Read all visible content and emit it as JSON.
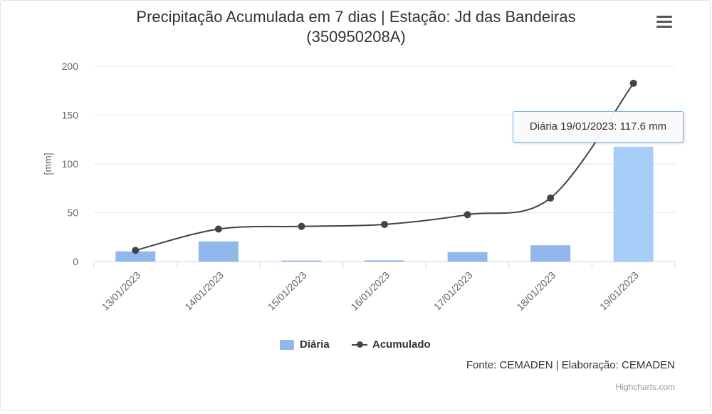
{
  "chart_data": {
    "type": "bar",
    "title": "Precipitação Acumulada em 7 dias | Estação: Jd das Bandeiras (350950208A)",
    "ylabel": "[mm]",
    "ylim": [
      0,
      200
    ],
    "yticks": [
      0,
      50,
      100,
      150,
      200
    ],
    "categories": [
      "13/01/2023",
      "14/01/2023",
      "15/01/2023",
      "16/01/2023",
      "17/01/2023",
      "18/01/2023",
      "19/01/2023"
    ],
    "series": [
      {
        "name": "Diária",
        "type": "bar",
        "color": "#90b8ea",
        "highlight_color": "#a6cdf7",
        "values": [
          10.4,
          20.6,
          1.0,
          1.2,
          9.6,
          16.6,
          117.6
        ]
      },
      {
        "name": "Acumulado",
        "type": "line",
        "color": "#434348",
        "values": [
          11.4,
          33.2,
          36.0,
          38.0,
          48.0,
          65.0,
          182.6
        ]
      }
    ],
    "legend": "bottom-center",
    "grid": true
  },
  "title_lines": [
    "Precipitação Acumulada em 7 dias | Estação: Jd das Bandeiras",
    "(350950208A)"
  ],
  "tooltip": {
    "text": "Diária 19/01/2023: 117.6 mm"
  },
  "legend": {
    "diaria": "Diária",
    "acumulado": "Acumulado"
  },
  "credits": {
    "source": "Fonte: CEMADEN | Elaboração: CEMADEN",
    "highcharts": "Highcharts.com"
  }
}
